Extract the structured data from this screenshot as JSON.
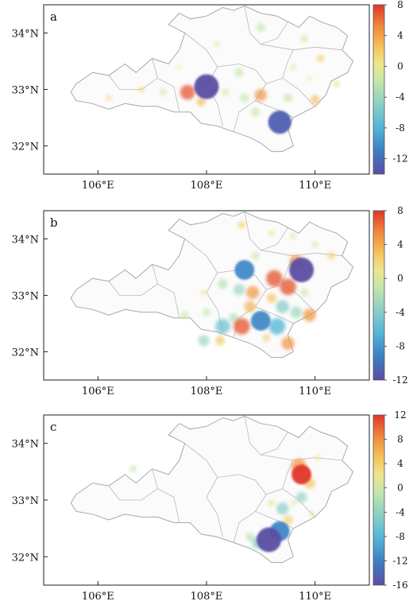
{
  "tick_labels": {
    "x": [
      "106°E",
      "108°E",
      "110°E"
    ],
    "y": [
      "34°N",
      "33°N",
      "32°N"
    ]
  },
  "colors": {
    "colormap": [
      "#5b4ea3",
      "#3b7fc4",
      "#55b6d6",
      "#8ed1c5",
      "#c5e6a8",
      "#efe58e",
      "#f6c35a",
      "#f08a3c",
      "#e0352a"
    ]
  },
  "panels": [
    {
      "letter": "a",
      "colorbar": {
        "vmin": -14,
        "vmax": 8,
        "tick_labels": [
          "8",
          "4",
          "0",
          "-4",
          "-8",
          "-12"
        ]
      },
      "points": [
        {
          "lon": 108.0,
          "lat": 33.05,
          "value": -14
        },
        {
          "lon": 109.35,
          "lat": 32.42,
          "value": -13
        },
        {
          "lon": 107.65,
          "lat": 32.95,
          "value": 7
        },
        {
          "lon": 107.9,
          "lat": 32.78,
          "value": 3
        },
        {
          "lon": 109.0,
          "lat": 32.9,
          "value": 5
        },
        {
          "lon": 110.0,
          "lat": 32.82,
          "value": 3
        },
        {
          "lon": 110.1,
          "lat": 33.55,
          "value": 2
        },
        {
          "lon": 108.7,
          "lat": 32.85,
          "value": -3
        },
        {
          "lon": 108.35,
          "lat": 32.95,
          "value": -2
        },
        {
          "lon": 109.5,
          "lat": 32.85,
          "value": -3
        },
        {
          "lon": 109.6,
          "lat": 33.4,
          "value": -1
        },
        {
          "lon": 106.8,
          "lat": 33.0,
          "value": 1
        },
        {
          "lon": 107.2,
          "lat": 32.95,
          "value": -2
        },
        {
          "lon": 108.6,
          "lat": 33.3,
          "value": -3
        },
        {
          "lon": 109.0,
          "lat": 34.1,
          "value": -3
        },
        {
          "lon": 108.2,
          "lat": 33.8,
          "value": -1
        },
        {
          "lon": 107.5,
          "lat": 33.4,
          "value": 0
        },
        {
          "lon": 110.4,
          "lat": 33.1,
          "value": 1
        },
        {
          "lon": 109.8,
          "lat": 33.9,
          "value": -2
        },
        {
          "lon": 106.2,
          "lat": 32.85,
          "value": 1
        },
        {
          "lon": 108.9,
          "lat": 32.6,
          "value": -3
        },
        {
          "lon": 109.9,
          "lat": 33.2,
          "value": 0
        }
      ]
    },
    {
      "letter": "b",
      "colorbar": {
        "vmin": -12,
        "vmax": 8,
        "tick_labels": [
          "8",
          "4",
          "0",
          "-4",
          "-8",
          "-12"
        ]
      },
      "points": [
        {
          "lon": 109.75,
          "lat": 33.45,
          "value": -12
        },
        {
          "lon": 109.25,
          "lat": 33.3,
          "value": 7
        },
        {
          "lon": 109.5,
          "lat": 33.15,
          "value": 7
        },
        {
          "lon": 108.7,
          "lat": 33.45,
          "value": -9
        },
        {
          "lon": 109.0,
          "lat": 32.55,
          "value": -9
        },
        {
          "lon": 108.65,
          "lat": 32.45,
          "value": 7
        },
        {
          "lon": 109.5,
          "lat": 32.15,
          "value": 5
        },
        {
          "lon": 108.85,
          "lat": 33.05,
          "value": 5
        },
        {
          "lon": 108.8,
          "lat": 32.8,
          "value": 4
        },
        {
          "lon": 109.2,
          "lat": 32.95,
          "value": 3
        },
        {
          "lon": 109.65,
          "lat": 33.6,
          "value": 5
        },
        {
          "lon": 109.9,
          "lat": 32.65,
          "value": 5
        },
        {
          "lon": 109.3,
          "lat": 32.45,
          "value": -7
        },
        {
          "lon": 108.3,
          "lat": 32.45,
          "value": -6
        },
        {
          "lon": 109.4,
          "lat": 32.8,
          "value": -5
        },
        {
          "lon": 109.65,
          "lat": 32.7,
          "value": -4
        },
        {
          "lon": 108.5,
          "lat": 32.6,
          "value": -3
        },
        {
          "lon": 107.95,
          "lat": 33.05,
          "value": 1
        },
        {
          "lon": 108.25,
          "lat": 32.2,
          "value": 3
        },
        {
          "lon": 109.1,
          "lat": 32.25,
          "value": 2
        },
        {
          "lon": 108.65,
          "lat": 34.25,
          "value": 2
        },
        {
          "lon": 109.2,
          "lat": 34.1,
          "value": 1
        },
        {
          "lon": 109.6,
          "lat": 34.05,
          "value": -1
        },
        {
          "lon": 110.3,
          "lat": 33.7,
          "value": 2
        },
        {
          "lon": 108.3,
          "lat": 33.2,
          "value": -3
        },
        {
          "lon": 107.95,
          "lat": 32.2,
          "value": -4
        },
        {
          "lon": 108.0,
          "lat": 32.7,
          "value": -2
        },
        {
          "lon": 108.6,
          "lat": 33.1,
          "value": -4
        },
        {
          "lon": 109.8,
          "lat": 33.05,
          "value": -2
        },
        {
          "lon": 107.6,
          "lat": 32.65,
          "value": -2
        },
        {
          "lon": 110.0,
          "lat": 33.9,
          "value": -1
        },
        {
          "lon": 108.9,
          "lat": 33.7,
          "value": -2
        }
      ]
    },
    {
      "letter": "c",
      "colorbar": {
        "vmin": -16,
        "vmax": 12,
        "tick_labels": [
          "12",
          "8",
          "4",
          "0",
          "-4",
          "-8",
          "-12",
          "-16"
        ]
      },
      "points": [
        {
          "lon": 109.15,
          "lat": 32.3,
          "value": -16
        },
        {
          "lon": 109.75,
          "lat": 33.45,
          "value": 12
        },
        {
          "lon": 109.7,
          "lat": 33.6,
          "value": 8
        },
        {
          "lon": 109.9,
          "lat": 33.3,
          "value": 5
        },
        {
          "lon": 109.5,
          "lat": 32.65,
          "value": 4
        },
        {
          "lon": 109.35,
          "lat": 32.45,
          "value": -12
        },
        {
          "lon": 109.4,
          "lat": 32.85,
          "value": -6
        },
        {
          "lon": 109.6,
          "lat": 32.95,
          "value": 1
        },
        {
          "lon": 109.75,
          "lat": 33.05,
          "value": -5
        },
        {
          "lon": 109.2,
          "lat": 32.95,
          "value": 2
        },
        {
          "lon": 108.95,
          "lat": 32.25,
          "value": -6
        },
        {
          "lon": 108.8,
          "lat": 32.35,
          "value": -3
        },
        {
          "lon": 106.65,
          "lat": 33.55,
          "value": -2
        },
        {
          "lon": 109.95,
          "lat": 32.75,
          "value": -1
        },
        {
          "lon": 110.05,
          "lat": 33.75,
          "value": 1
        }
      ]
    }
  ]
}
